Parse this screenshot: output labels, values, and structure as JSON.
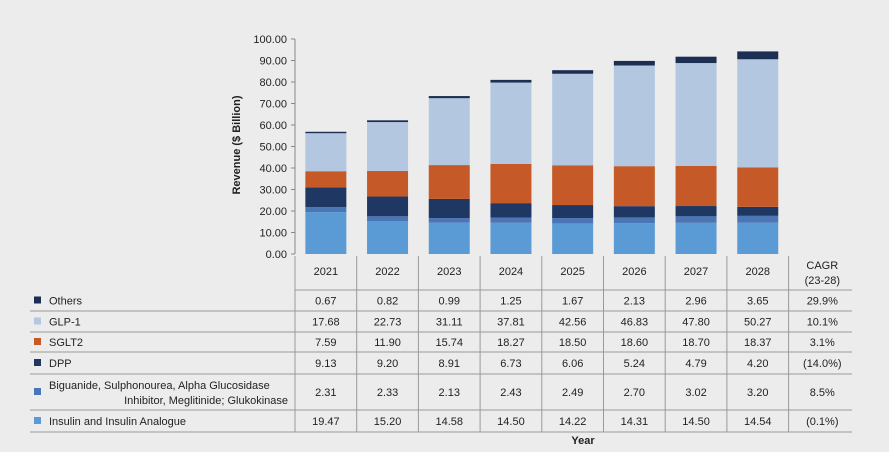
{
  "chart_data": {
    "type": "bar",
    "stacked": true,
    "ylabel": "Revenue ($ Billion)",
    "xlabel": "Year",
    "ylim": [
      0,
      100
    ],
    "yticks": [
      "0.00",
      "10.00",
      "20.00",
      "30.00",
      "40.00",
      "50.00",
      "60.00",
      "70.00",
      "80.00",
      "90.00",
      "100.00"
    ],
    "categories": [
      "2021",
      "2022",
      "2023",
      "2024",
      "2025",
      "2026",
      "2027",
      "2028"
    ],
    "cagr_header": [
      "CAGR",
      "(23-28)"
    ],
    "series": [
      {
        "name": "Insulin and Insulin Analogue",
        "color": "#5b9bd5",
        "values": [
          19.47,
          15.2,
          14.58,
          14.5,
          14.22,
          14.31,
          14.5,
          14.54
        ],
        "display": [
          "19.47",
          "15.20",
          "14.58",
          "14.50",
          "14.22",
          "14.31",
          "14.50",
          "14.54"
        ],
        "cagr": "(0.1%)"
      },
      {
        "name_lines": [
          "Biguanide, Sulphonourea, Alpha Glucosidase",
          "Inhibitor, Meglitinide; Glukokinase"
        ],
        "color": "#4a76b6",
        "values": [
          2.31,
          2.33,
          2.13,
          2.43,
          2.49,
          2.7,
          3.02,
          3.2
        ],
        "display": [
          "2.31",
          "2.33",
          "2.13",
          "2.43",
          "2.49",
          "2.70",
          "3.02",
          "3.20"
        ],
        "cagr": "8.5%"
      },
      {
        "name": "DPP",
        "color": "#1f3863",
        "values": [
          9.13,
          9.2,
          8.91,
          6.73,
          6.06,
          5.24,
          4.79,
          4.2
        ],
        "display": [
          "9.13",
          "9.20",
          "8.91",
          "6.73",
          "6.06",
          "5.24",
          "4.79",
          "4.20"
        ],
        "cagr": "(14.0%)"
      },
      {
        "name": "SGLT2",
        "color": "#c55a28",
        "values": [
          7.59,
          11.9,
          15.74,
          18.27,
          18.5,
          18.6,
          18.7,
          18.37
        ],
        "display": [
          "7.59",
          "11.90",
          "15.74",
          "18.27",
          "18.50",
          "18.60",
          "18.70",
          "18.37"
        ],
        "cagr": "3.1%"
      },
      {
        "name": "GLP-1",
        "color": "#b4c7e0",
        "values": [
          17.68,
          22.73,
          31.11,
          37.81,
          42.56,
          46.83,
          47.8,
          50.27
        ],
        "display": [
          "17.68",
          "22.73",
          "31.11",
          "37.81",
          "42.56",
          "46.83",
          "47.80",
          "50.27"
        ],
        "cagr": "10.1%"
      },
      {
        "name": "Others",
        "color": "#1c2e52",
        "values": [
          0.67,
          0.82,
          0.99,
          1.25,
          1.67,
          2.13,
          2.96,
          3.65
        ],
        "display": [
          "0.67",
          "0.82",
          "0.99",
          "1.25",
          "1.67",
          "2.13",
          "2.96",
          "3.65"
        ],
        "cagr": "29.9%"
      }
    ],
    "table_row_order": [
      "Others",
      "GLP-1",
      "SGLT2",
      "DPP",
      "Biguanide",
      "Insulin"
    ]
  }
}
